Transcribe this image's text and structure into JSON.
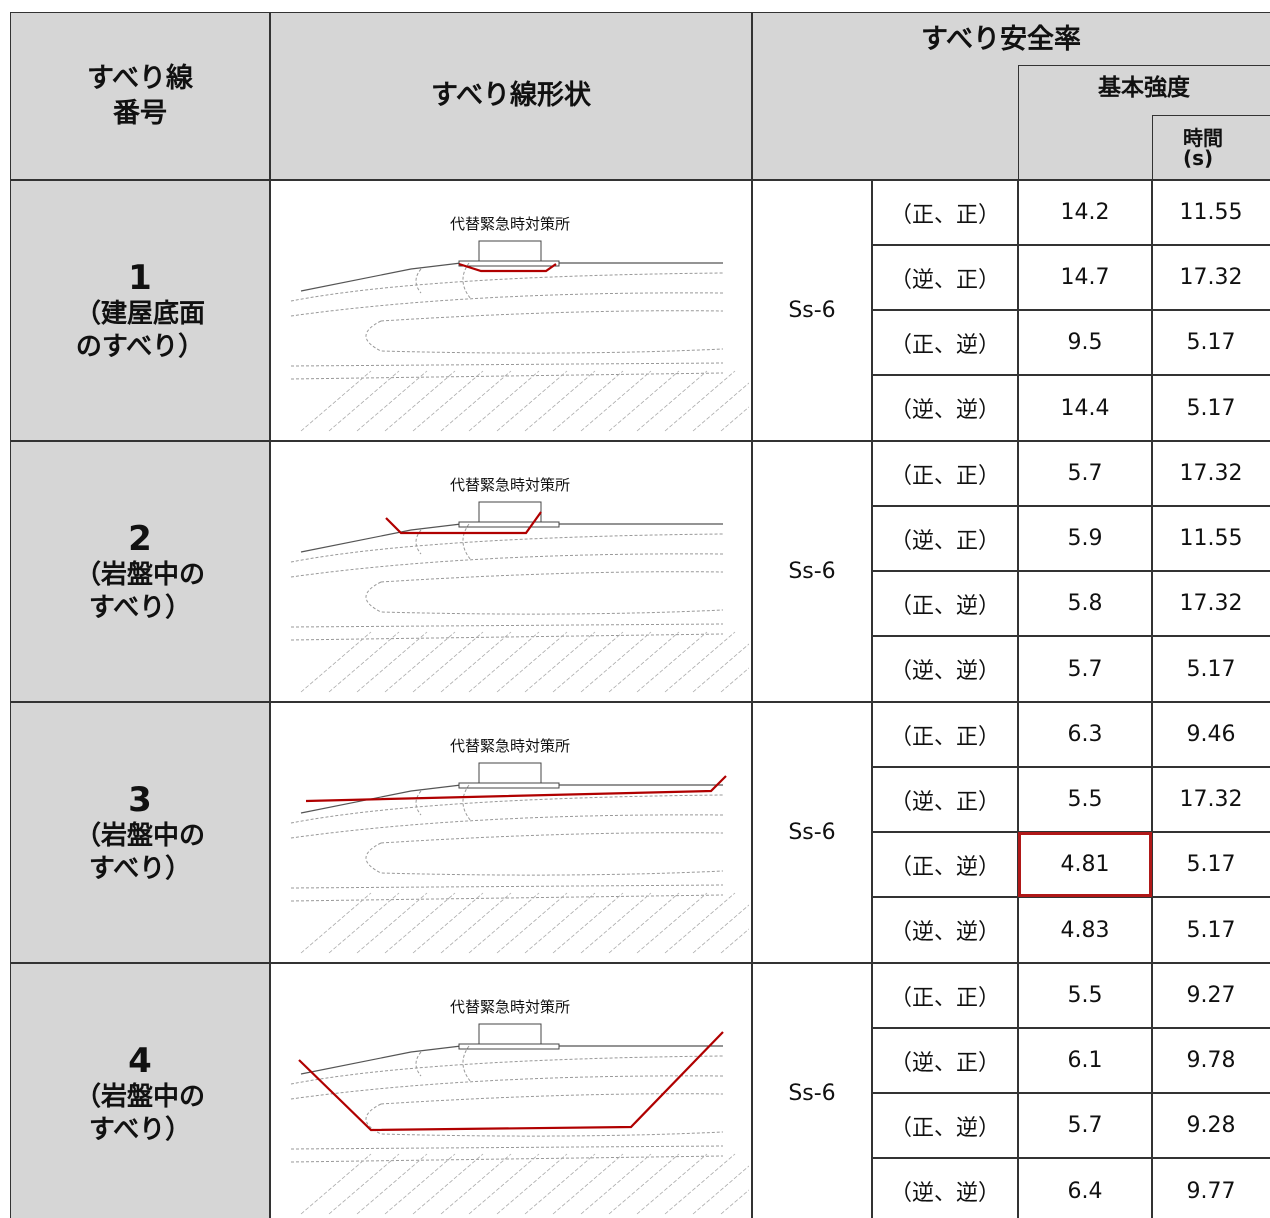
{
  "header": {
    "col_number": [
      "すべり線",
      "番号"
    ],
    "col_shape": "すべり線形状",
    "col_safety": "すべり安全率",
    "col_strength": "基本強度",
    "col_time": [
      "時間",
      "(s)"
    ]
  },
  "groups": [
    {
      "number": "1",
      "description": [
        "（建屋底面",
        "のすべり）"
      ],
      "diagram_label": "代替緊急時対策所",
      "wave": "Ss-6",
      "rows": [
        [
          "（正、正）",
          "14.2",
          "11.55"
        ],
        [
          "（逆、正）",
          "14.7",
          "17.32"
        ],
        [
          "（正、逆）",
          "9.5",
          "5.17"
        ],
        [
          "（逆、逆）",
          "14.4",
          "5.17"
        ]
      ]
    },
    {
      "number": "2",
      "description": [
        "（岩盤中の",
        "すべり）"
      ],
      "diagram_label": "代替緊急時対策所",
      "wave": "Ss-6",
      "rows": [
        [
          "（正、正）",
          "5.7",
          "17.32"
        ],
        [
          "（逆、正）",
          "5.9",
          "11.55"
        ],
        [
          "（正、逆）",
          "5.8",
          "17.32"
        ],
        [
          "（逆、逆）",
          "5.7",
          "5.17"
        ]
      ]
    },
    {
      "number": "3",
      "description": [
        "（岩盤中の",
        "すべり）"
      ],
      "diagram_label": "代替緊急時対策所",
      "wave": "Ss-6",
      "rows": [
        [
          "（正、正）",
          "6.3",
          "9.46"
        ],
        [
          "（逆、正）",
          "5.5",
          "17.32"
        ],
        [
          "（正、逆）",
          "4.81",
          "5.17"
        ],
        [
          "（逆、逆）",
          "4.83",
          "5.17"
        ]
      ]
    },
    {
      "number": "4",
      "description": [
        "（岩盤中の",
        "すべり）"
      ],
      "diagram_label": "代替緊急時対策所",
      "wave": "Ss-6",
      "rows": [
        [
          "（正、正）",
          "5.5",
          "9.27"
        ],
        [
          "（逆、正）",
          "6.1",
          "9.78"
        ],
        [
          "（正、逆）",
          "5.7",
          "9.28"
        ],
        [
          "（逆、逆）",
          "6.4",
          "9.77"
        ]
      ]
    }
  ]
}
